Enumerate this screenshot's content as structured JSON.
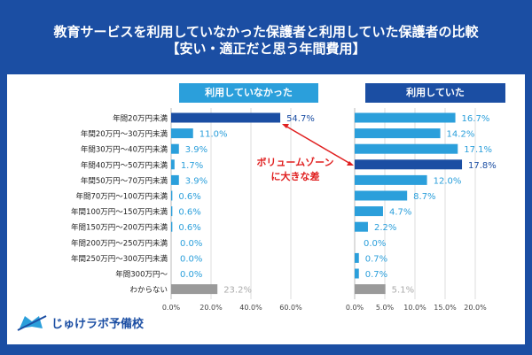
{
  "title_line1": "教育サービスを利用していなかった保護者と利用していた保護者の比較",
  "title_line2": "【安い・適正だと思う年間費用】",
  "logo_text": "じゅけラボ予備校",
  "colors": {
    "background": "#1b4ea3",
    "bar": "#2b9fdb",
    "highlight": "#1b4ea3",
    "unknown": "#9a9a9a",
    "annotation": "#e02020"
  },
  "annotation": {
    "line1": "ボリュームゾーン",
    "line2": "に大きな差"
  },
  "chart_data": [
    {
      "type": "bar",
      "orientation": "horizontal",
      "title": "利用していなかった",
      "categories": [
        "年間20万円未満",
        "年間20万円〜30万円未満",
        "年間30万円〜40万円未満",
        "年間40万円〜50万円未満",
        "年間50万円〜70万円未満",
        "年間70万円〜100万円未満",
        "年間100万円〜150万円未満",
        "年間150万円〜200万円未満",
        "年間200万円〜250万円未満",
        "年間250万円〜300万円未満",
        "年間300万円〜",
        "わからない"
      ],
      "values": [
        54.7,
        11.0,
        3.9,
        1.7,
        3.9,
        0.6,
        0.6,
        0.6,
        0.0,
        0.0,
        0.0,
        23.2
      ],
      "labels": [
        "54.7%",
        "11.0%",
        "3.9%",
        "1.7%",
        "3.9%",
        "0.6%",
        "0.6%",
        "0.6%",
        "0.0%",
        "0.0%",
        "0.0%",
        "23.2%"
      ],
      "highlight_index": 0,
      "xlim": [
        0,
        80
      ],
      "ticks": [
        "0.0%",
        "20.0%",
        "40.0%",
        "60.0%"
      ],
      "grid": true
    },
    {
      "type": "bar",
      "orientation": "horizontal",
      "title": "利用していた",
      "categories": [
        "年間20万円未満",
        "年間20万円〜30万円未満",
        "年間30万円〜40万円未満",
        "年間40万円〜50万円未満",
        "年間50万円〜70万円未満",
        "年間70万円〜100万円未満",
        "年間100万円〜150万円未満",
        "年間150万円〜200万円未満",
        "年間200万円〜250万円未満",
        "年間250万円〜300万円未満",
        "年間300万円〜",
        "わからない"
      ],
      "values": [
        16.7,
        14.2,
        17.1,
        17.8,
        12.0,
        8.7,
        4.7,
        2.2,
        0.0,
        0.7,
        0.7,
        5.1
      ],
      "labels": [
        "16.7%",
        "14.2%",
        "17.1%",
        "17.8%",
        "12.0%",
        "8.7%",
        "4.7%",
        "2.2%",
        "0.0%",
        "0.7%",
        "0.7%",
        "5.1%"
      ],
      "highlight_index": 3,
      "xlim": [
        0,
        25
      ],
      "ticks": [
        "0.0%",
        "5.0%",
        "10.0%",
        "15.0%",
        "20.0%"
      ],
      "grid": true
    }
  ]
}
